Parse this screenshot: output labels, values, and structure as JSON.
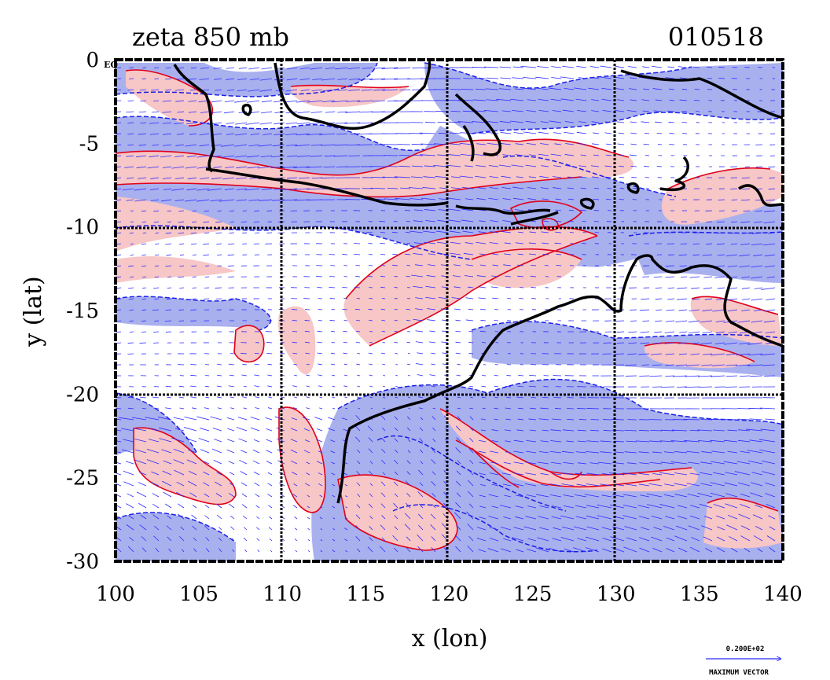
{
  "figure": {
    "title_left": "zeta 850 mb",
    "title_right": "010518",
    "corner_tag": "EQ",
    "xlabel": "x (lon)",
    "ylabel": "y (lat)",
    "legend_value": "0.200E+02",
    "legend_label": "MAXIMUM VECTOR"
  },
  "chart_data": {
    "type": "heatmap",
    "xlim": [
      100,
      140
    ],
    "ylim": [
      -30,
      0
    ],
    "x_ticks": [
      "100",
      "105",
      "110",
      "115",
      "120",
      "125",
      "130",
      "135",
      "140"
    ],
    "x_tick_values": [
      100,
      105,
      110,
      115,
      120,
      125,
      130,
      135,
      140
    ],
    "y_ticks": [
      "0",
      "-5",
      "-10",
      "-15",
      "-20",
      "-25",
      "-30"
    ],
    "y_tick_values": [
      0,
      -5,
      -10,
      -15,
      -20,
      -25,
      -30
    ],
    "grid_lons": [
      110,
      120,
      130
    ],
    "grid_lats": [
      -10,
      -20
    ],
    "colors": {
      "positive_fill": "#f7c6c6",
      "positive_contour": "#e0001a",
      "negative_fill": "#a9b0ee",
      "negative_contour": "#1a1fe6",
      "vector": "#2a2aff",
      "coast": "#000000"
    }
  }
}
